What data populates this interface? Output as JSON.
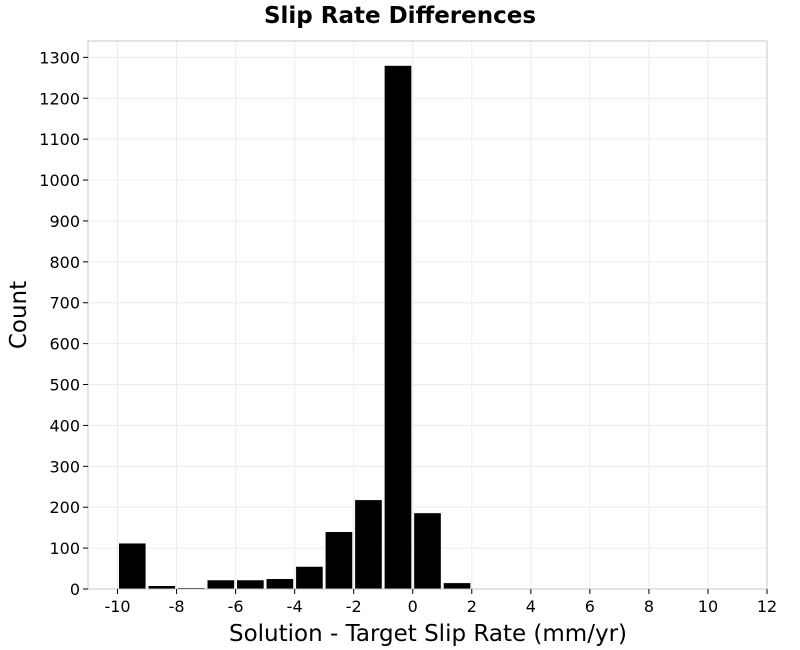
{
  "chart_data": {
    "type": "bar",
    "title": "Slip Rate Differences",
    "xlabel": "Solution - Target Slip Rate (mm/yr)",
    "ylabel": "Count",
    "xlim": [
      -11,
      12
    ],
    "ylim": [
      0,
      1340
    ],
    "xticks": [
      -10,
      -8,
      -6,
      -4,
      -2,
      0,
      2,
      4,
      6,
      8,
      10,
      12
    ],
    "xtick_labels": [
      "-10",
      "-8",
      "-6",
      "-4",
      "-2",
      "0",
      "2",
      "4",
      "6",
      "8",
      "10",
      "12"
    ],
    "yticks": [
      0,
      100,
      200,
      300,
      400,
      500,
      600,
      700,
      800,
      900,
      1000,
      1100,
      1200,
      1300
    ],
    "ytick_labels": [
      "0",
      "100",
      "200",
      "300",
      "400",
      "500",
      "600",
      "700",
      "800",
      "900",
      "1000",
      "1100",
      "1200",
      "1300"
    ],
    "bin_width": 1,
    "grid": true,
    "bars": [
      {
        "x": -9.5,
        "value": 112
      },
      {
        "x": -8.5,
        "value": 8
      },
      {
        "x": -7.5,
        "value": 3
      },
      {
        "x": -6.5,
        "value": 22
      },
      {
        "x": -5.5,
        "value": 22
      },
      {
        "x": -4.5,
        "value": 25
      },
      {
        "x": -3.5,
        "value": 55
      },
      {
        "x": -2.5,
        "value": 140
      },
      {
        "x": -1.5,
        "value": 218
      },
      {
        "x": -0.5,
        "value": 1280
      },
      {
        "x": 0.5,
        "value": 186
      },
      {
        "x": 1.5,
        "value": 15
      }
    ],
    "colors": {
      "bar": "#000000",
      "grid": "#ececec",
      "frame": "#c8c8c8"
    }
  }
}
